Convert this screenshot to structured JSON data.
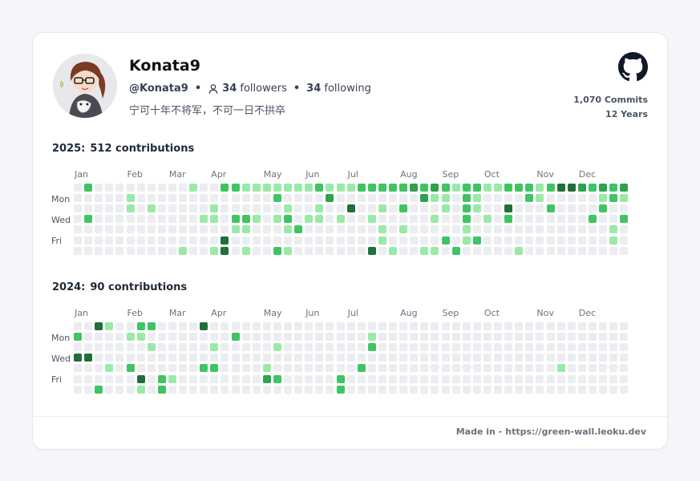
{
  "profile": {
    "name": "Konata9",
    "handle": "@Konata9",
    "followers_count": "34",
    "followers_label": "followers",
    "following_count": "34",
    "following_label": "following",
    "bio": "宁可十年不将军，不可一日不拱卒"
  },
  "stats": {
    "commits": "1,070 Commits",
    "years": "12 Years"
  },
  "colors": {
    "level0": "#ebedf0",
    "level1": "#9be9a8",
    "level2": "#40c463",
    "level3": "#30a14e",
    "level4": "#216e39",
    "accent": "#111827"
  },
  "day_labels": [
    "Mon",
    "Wed",
    "Fri"
  ],
  "years": [
    {
      "year_label": "2025:",
      "contributions_label": "512 contributions",
      "months": [
        {
          "label": "Jan",
          "week": 0
        },
        {
          "label": "Feb",
          "week": 5
        },
        {
          "label": "Mar",
          "week": 9
        },
        {
          "label": "Apr",
          "week": 13
        },
        {
          "label": "May",
          "week": 18
        },
        {
          "label": "Jun",
          "week": 22
        },
        {
          "label": "Jul",
          "week": 26
        },
        {
          "label": "Aug",
          "week": 31
        },
        {
          "label": "Sep",
          "week": 35
        },
        {
          "label": "Oct",
          "week": 39
        },
        {
          "label": "Nov",
          "week": 44
        },
        {
          "label": "Dec",
          "week": 48
        }
      ],
      "weeks": [
        [
          0,
          0,
          0,
          0,
          0,
          0,
          0
        ],
        [
          2,
          0,
          0,
          2,
          0,
          0,
          0
        ],
        [
          0,
          0,
          0,
          0,
          0,
          0,
          0
        ],
        [
          0,
          0,
          0,
          0,
          0,
          0,
          0
        ],
        [
          0,
          0,
          0,
          0,
          0,
          0,
          0
        ],
        [
          0,
          1,
          1,
          0,
          0,
          0,
          0
        ],
        [
          0,
          0,
          0,
          0,
          0,
          0,
          0
        ],
        [
          0,
          0,
          1,
          0,
          0,
          0,
          0
        ],
        [
          0,
          0,
          0,
          0,
          0,
          0,
          0
        ],
        [
          0,
          0,
          0,
          0,
          0,
          0,
          0
        ],
        [
          0,
          0,
          0,
          0,
          0,
          0,
          1
        ],
        [
          1,
          0,
          0,
          0,
          0,
          0,
          0
        ],
        [
          0,
          0,
          0,
          1,
          0,
          0,
          0
        ],
        [
          0,
          0,
          1,
          1,
          0,
          0,
          1
        ],
        [
          2,
          0,
          0,
          0,
          0,
          4,
          4
        ],
        [
          2,
          0,
          0,
          2,
          1,
          0,
          0
        ],
        [
          1,
          0,
          0,
          2,
          1,
          0,
          1
        ],
        [
          1,
          0,
          0,
          1,
          0,
          0,
          0
        ],
        [
          1,
          0,
          0,
          0,
          0,
          0,
          0
        ],
        [
          1,
          2,
          0,
          1,
          0,
          0,
          2
        ],
        [
          1,
          0,
          1,
          2,
          1,
          0,
          1
        ],
        [
          1,
          0,
          0,
          0,
          2,
          0,
          0
        ],
        [
          1,
          0,
          0,
          1,
          0,
          0,
          0
        ],
        [
          2,
          0,
          1,
          1,
          0,
          0,
          0
        ],
        [
          1,
          3,
          0,
          0,
          0,
          0,
          0
        ],
        [
          1,
          0,
          0,
          1,
          0,
          0,
          0
        ],
        [
          1,
          0,
          4,
          0,
          0,
          0,
          0
        ],
        [
          2,
          0,
          0,
          0,
          0,
          0,
          0
        ],
        [
          2,
          0,
          0,
          1,
          0,
          0,
          4
        ],
        [
          2,
          0,
          1,
          0,
          1,
          1,
          0
        ],
        [
          2,
          0,
          0,
          0,
          0,
          0,
          1
        ],
        [
          2,
          0,
          2,
          0,
          1,
          0,
          0
        ],
        [
          3,
          0,
          0,
          0,
          0,
          0,
          0
        ],
        [
          2,
          3,
          0,
          0,
          0,
          0,
          1
        ],
        [
          3,
          1,
          0,
          1,
          0,
          0,
          1
        ],
        [
          2,
          1,
          1,
          0,
          0,
          2,
          0
        ],
        [
          1,
          0,
          0,
          0,
          0,
          0,
          2
        ],
        [
          2,
          2,
          2,
          2,
          1,
          1,
          0
        ],
        [
          2,
          1,
          1,
          0,
          0,
          2,
          0
        ],
        [
          1,
          0,
          0,
          1,
          0,
          0,
          0
        ],
        [
          1,
          0,
          0,
          0,
          0,
          0,
          0
        ],
        [
          2,
          0,
          4,
          2,
          0,
          0,
          0
        ],
        [
          2,
          0,
          0,
          0,
          0,
          0,
          1
        ],
        [
          2,
          2,
          0,
          0,
          0,
          0,
          0
        ],
        [
          1,
          1,
          0,
          0,
          0,
          0,
          0
        ],
        [
          2,
          0,
          2,
          0,
          0,
          0,
          0
        ],
        [
          4,
          0,
          0,
          0,
          0,
          0,
          0
        ],
        [
          4,
          0,
          0,
          0,
          0,
          0,
          0
        ],
        [
          3,
          0,
          0,
          0,
          0,
          0,
          0
        ],
        [
          2,
          0,
          0,
          2,
          0,
          0,
          0
        ],
        [
          3,
          1,
          2,
          0,
          0,
          0,
          0
        ],
        [
          2,
          2,
          0,
          0,
          1,
          1,
          0
        ],
        [
          3,
          1,
          0,
          2,
          0,
          0,
          0
        ]
      ]
    },
    {
      "year_label": "2024:",
      "contributions_label": "90 contributions",
      "months": [
        {
          "label": "Jan",
          "week": 0
        },
        {
          "label": "Feb",
          "week": 5
        },
        {
          "label": "Mar",
          "week": 9
        },
        {
          "label": "Apr",
          "week": 13
        },
        {
          "label": "May",
          "week": 18
        },
        {
          "label": "Jun",
          "week": 22
        },
        {
          "label": "Jul",
          "week": 26
        },
        {
          "label": "Aug",
          "week": 31
        },
        {
          "label": "Sep",
          "week": 35
        },
        {
          "label": "Oct",
          "week": 39
        },
        {
          "label": "Nov",
          "week": 44
        },
        {
          "label": "Dec",
          "week": 48
        }
      ],
      "weeks": [
        [
          0,
          2,
          0,
          4,
          0,
          0,
          0
        ],
        [
          0,
          0,
          0,
          4,
          0,
          0,
          0
        ],
        [
          4,
          0,
          0,
          0,
          0,
          0,
          2
        ],
        [
          1,
          0,
          0,
          0,
          1,
          0,
          0
        ],
        [
          0,
          0,
          0,
          0,
          0,
          0,
          0
        ],
        [
          0,
          1,
          0,
          0,
          2,
          0,
          0
        ],
        [
          2,
          1,
          0,
          0,
          0,
          4,
          1
        ],
        [
          2,
          0,
          1,
          0,
          0,
          0,
          0
        ],
        [
          0,
          0,
          0,
          0,
          0,
          2,
          2
        ],
        [
          0,
          0,
          0,
          0,
          0,
          1,
          0
        ],
        [
          0,
          0,
          0,
          0,
          0,
          0,
          0
        ],
        [
          0,
          0,
          0,
          0,
          0,
          0,
          0
        ],
        [
          4,
          0,
          0,
          0,
          2,
          0,
          0
        ],
        [
          0,
          0,
          1,
          0,
          2,
          0,
          0
        ],
        [
          0,
          0,
          0,
          0,
          0,
          0,
          0
        ],
        [
          0,
          2,
          0,
          0,
          0,
          0,
          0
        ],
        [
          0,
          0,
          0,
          0,
          0,
          0,
          0
        ],
        [
          0,
          0,
          0,
          0,
          0,
          0,
          0
        ],
        [
          0,
          0,
          0,
          0,
          1,
          3,
          0
        ],
        [
          0,
          0,
          1,
          0,
          0,
          2,
          0
        ],
        [
          0,
          0,
          0,
          0,
          0,
          0,
          0
        ],
        [
          0,
          0,
          0,
          0,
          0,
          0,
          0
        ],
        [
          0,
          0,
          0,
          0,
          0,
          0,
          0
        ],
        [
          0,
          0,
          0,
          0,
          0,
          0,
          0
        ],
        [
          0,
          0,
          0,
          0,
          0,
          0,
          0
        ],
        [
          0,
          0,
          0,
          0,
          0,
          2,
          2
        ],
        [
          0,
          0,
          0,
          0,
          0,
          0,
          0
        ],
        [
          0,
          0,
          0,
          0,
          2,
          0,
          0
        ],
        [
          0,
          1,
          2,
          0,
          0,
          0,
          0
        ],
        [
          0,
          0,
          0,
          0,
          0,
          0,
          0
        ],
        [
          0,
          0,
          0,
          0,
          0,
          0,
          0
        ],
        [
          0,
          0,
          0,
          0,
          0,
          0,
          0
        ],
        [
          0,
          0,
          0,
          0,
          0,
          0,
          0
        ],
        [
          0,
          0,
          0,
          0,
          0,
          0,
          0
        ],
        [
          0,
          0,
          0,
          0,
          0,
          0,
          0
        ],
        [
          0,
          0,
          0,
          0,
          0,
          0,
          0
        ],
        [
          0,
          0,
          0,
          0,
          0,
          0,
          0
        ],
        [
          0,
          0,
          0,
          0,
          0,
          0,
          0
        ],
        [
          0,
          0,
          0,
          0,
          0,
          0,
          0
        ],
        [
          0,
          0,
          0,
          0,
          0,
          0,
          0
        ],
        [
          0,
          0,
          0,
          0,
          0,
          0,
          0
        ],
        [
          0,
          0,
          0,
          0,
          0,
          0,
          0
        ],
        [
          0,
          0,
          0,
          0,
          0,
          0,
          0
        ],
        [
          0,
          0,
          0,
          0,
          0,
          0,
          0
        ],
        [
          0,
          0,
          0,
          0,
          0,
          0,
          0
        ],
        [
          0,
          0,
          0,
          0,
          0,
          0,
          0
        ],
        [
          0,
          0,
          0,
          0,
          1,
          0,
          0
        ],
        [
          0,
          0,
          0,
          0,
          0,
          0,
          0
        ],
        [
          0,
          0,
          0,
          0,
          0,
          0,
          0
        ],
        [
          0,
          0,
          0,
          0,
          0,
          0,
          0
        ],
        [
          0,
          0,
          0,
          0,
          0,
          0,
          0
        ],
        [
          0,
          0,
          0,
          0,
          0,
          0,
          0
        ],
        [
          0,
          0,
          0,
          0,
          0,
          0,
          0
        ]
      ]
    }
  ],
  "footer": {
    "made_in": "Made in -",
    "url": "https://green-wall.leoku.dev"
  }
}
